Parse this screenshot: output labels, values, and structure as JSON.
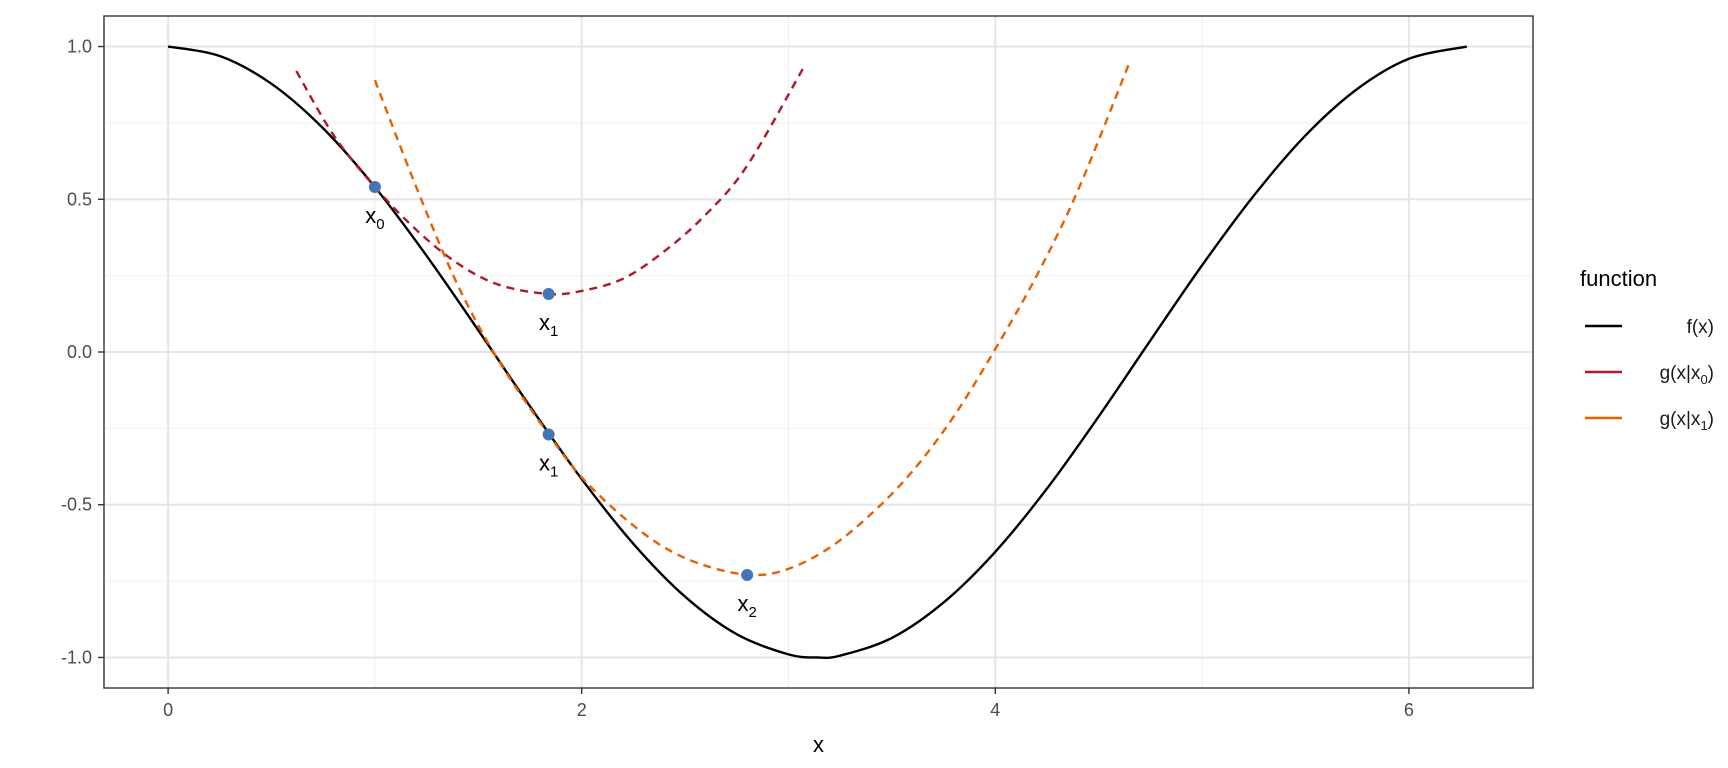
{
  "chart_data": {
    "type": "line",
    "xlabel": "x",
    "ylabel": "",
    "xlim": [
      -0.31,
      6.6
    ],
    "ylim": [
      -1.1,
      1.1
    ],
    "x_ticks": [
      0,
      2,
      4,
      6
    ],
    "y_ticks": [
      1.0,
      0.5,
      0.0,
      -0.5,
      -1.0
    ],
    "x_tick_labels": [
      "0",
      "2",
      "4",
      "6"
    ],
    "y_tick_labels": [
      "1.0",
      "0.5",
      "0.0",
      "-0.5",
      "-1.0"
    ],
    "grid": true,
    "legend_title": "function",
    "legend_position": "right",
    "series": [
      {
        "name": "f(x)",
        "style": "solid",
        "color": "#000000",
        "x": [
          0.0,
          0.25,
          0.5,
          0.75,
          1.0,
          1.25,
          1.5,
          1.75,
          2.0,
          2.25,
          2.5,
          2.75,
          3.0,
          3.14,
          3.25,
          3.5,
          3.75,
          4.0,
          4.25,
          4.5,
          4.75,
          5.0,
          5.25,
          5.5,
          5.75,
          6.0,
          6.28
        ],
        "y": [
          1.0,
          0.969,
          0.878,
          0.732,
          0.54,
          0.315,
          0.071,
          -0.178,
          -0.416,
          -0.628,
          -0.801,
          -0.924,
          -0.99,
          -1.0,
          -0.994,
          -0.936,
          -0.82,
          -0.654,
          -0.447,
          -0.211,
          0.038,
          0.284,
          0.512,
          0.709,
          0.861,
          0.96,
          1.0
        ]
      },
      {
        "name": "g(x|x0)",
        "style": "dashed",
        "color": "#b2182b",
        "x": [
          0.62,
          0.8,
          1.0,
          1.2,
          1.4,
          1.6,
          1.84,
          2.0,
          2.2,
          2.4,
          2.6,
          2.8,
          3.08
        ],
        "y": [
          0.92,
          0.71,
          0.54,
          0.4,
          0.29,
          0.22,
          0.19,
          0.2,
          0.24,
          0.33,
          0.45,
          0.61,
          0.94
        ]
      },
      {
        "name": "g(x|x1)",
        "style": "dashed",
        "color": "#e66101",
        "x": [
          1.0,
          1.2,
          1.4,
          1.6,
          1.84,
          2.0,
          2.2,
          2.4,
          2.6,
          2.82,
          3.0,
          3.2,
          3.4,
          3.6,
          3.8,
          4.0,
          4.2,
          4.4,
          4.65
        ],
        "y": [
          0.89,
          0.54,
          0.22,
          -0.03,
          -0.27,
          -0.41,
          -0.54,
          -0.64,
          -0.7,
          -0.73,
          -0.71,
          -0.64,
          -0.53,
          -0.39,
          -0.21,
          0.01,
          0.25,
          0.53,
          0.95
        ]
      }
    ],
    "points": [
      {
        "x": 1.0,
        "y": 0.54,
        "label": "x",
        "sub": "0"
      },
      {
        "x": 1.84,
        "y": 0.19,
        "label": "x",
        "sub": "1"
      },
      {
        "x": 1.84,
        "y": -0.27,
        "label": "x",
        "sub": "1"
      },
      {
        "x": 2.8,
        "y": -0.73,
        "label": "x",
        "sub": "2"
      }
    ],
    "legend_entries": [
      {
        "label": "f(x)",
        "color": "#000000"
      },
      {
        "label": "g(x|x",
        "sub": "0",
        "suffix": ")",
        "color": "#b2182b"
      },
      {
        "label": "g(x|x",
        "sub": "1",
        "suffix": ")",
        "color": "#e66101"
      }
    ],
    "point_color": "#4575b4"
  }
}
